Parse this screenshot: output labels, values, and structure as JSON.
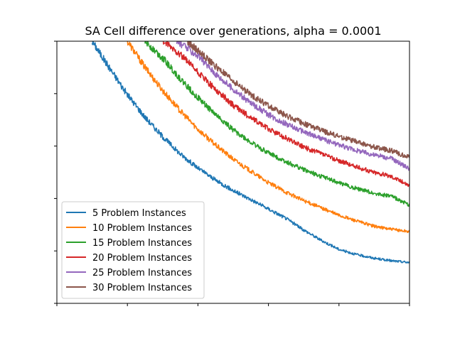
{
  "chart_data": {
    "type": "line",
    "title": "SA Cell difference over generations, alpha = 0.0001",
    "xlabel": "",
    "ylabel": "",
    "xlim": [
      0,
      5
    ],
    "ylim": [
      0,
      5
    ],
    "grid": false,
    "legend_position": "lower-left",
    "x_tick_labels_visible": false,
    "y_tick_labels_visible": false,
    "series": [
      {
        "name": "5 Problem Instances",
        "color": "#1f77b4",
        "points": [
          [
            0.5,
            5.0
          ],
          [
            0.75,
            4.48
          ],
          [
            1.0,
            3.98
          ],
          [
            1.25,
            3.55
          ],
          [
            1.5,
            3.18
          ],
          [
            1.75,
            2.85
          ],
          [
            2.0,
            2.58
          ],
          [
            2.25,
            2.35
          ],
          [
            2.5,
            2.15
          ],
          [
            2.75,
            1.98
          ],
          [
            3.0,
            1.8
          ],
          [
            3.25,
            1.62
          ],
          [
            3.5,
            1.4
          ],
          [
            3.75,
            1.2
          ],
          [
            4.0,
            1.03
          ],
          [
            4.25,
            0.93
          ],
          [
            4.5,
            0.86
          ],
          [
            4.75,
            0.81
          ],
          [
            5.0,
            0.78
          ]
        ]
      },
      {
        "name": "10 Problem Instances",
        "color": "#ff7f0e",
        "points": [
          [
            1.0,
            5.0
          ],
          [
            1.25,
            4.5
          ],
          [
            1.5,
            4.06
          ],
          [
            1.75,
            3.67
          ],
          [
            2.0,
            3.32
          ],
          [
            2.25,
            3.02
          ],
          [
            2.5,
            2.75
          ],
          [
            2.75,
            2.52
          ],
          [
            3.0,
            2.3
          ],
          [
            3.25,
            2.12
          ],
          [
            3.5,
            1.96
          ],
          [
            3.75,
            1.82
          ],
          [
            4.0,
            1.68
          ],
          [
            4.25,
            1.57
          ],
          [
            4.5,
            1.47
          ],
          [
            4.75,
            1.41
          ],
          [
            5.0,
            1.37
          ]
        ]
      },
      {
        "name": "15 Problem Instances",
        "color": "#2ca02c",
        "points": [
          [
            1.25,
            5.0
          ],
          [
            1.5,
            4.68
          ],
          [
            1.75,
            4.28
          ],
          [
            2.0,
            3.92
          ],
          [
            2.25,
            3.6
          ],
          [
            2.5,
            3.31
          ],
          [
            2.75,
            3.07
          ],
          [
            3.0,
            2.87
          ],
          [
            3.25,
            2.7
          ],
          [
            3.5,
            2.55
          ],
          [
            3.75,
            2.42
          ],
          [
            4.0,
            2.3
          ],
          [
            4.25,
            2.19
          ],
          [
            4.5,
            2.1
          ],
          [
            4.75,
            2.04
          ],
          [
            5.0,
            1.87
          ]
        ]
      },
      {
        "name": "20 Problem Instances",
        "color": "#d62728",
        "points": [
          [
            1.5,
            5.0
          ],
          [
            1.75,
            4.75
          ],
          [
            2.0,
            4.4
          ],
          [
            2.25,
            4.08
          ],
          [
            2.5,
            3.78
          ],
          [
            2.75,
            3.54
          ],
          [
            3.0,
            3.33
          ],
          [
            3.25,
            3.15
          ],
          [
            3.5,
            2.98
          ],
          [
            3.75,
            2.85
          ],
          [
            4.0,
            2.72
          ],
          [
            4.25,
            2.6
          ],
          [
            4.5,
            2.5
          ],
          [
            4.75,
            2.42
          ],
          [
            5.0,
            2.25
          ]
        ]
      },
      {
        "name": "25 Problem Instances",
        "color": "#9467bd",
        "points": [
          [
            1.7,
            5.0
          ],
          [
            2.0,
            4.72
          ],
          [
            2.25,
            4.38
          ],
          [
            2.5,
            4.08
          ],
          [
            2.75,
            3.82
          ],
          [
            3.0,
            3.6
          ],
          [
            3.25,
            3.42
          ],
          [
            3.5,
            3.27
          ],
          [
            3.75,
            3.14
          ],
          [
            4.0,
            3.02
          ],
          [
            4.25,
            2.92
          ],
          [
            4.5,
            2.83
          ],
          [
            4.75,
            2.76
          ],
          [
            5.0,
            2.57
          ]
        ]
      },
      {
        "name": "30 Problem Instances",
        "color": "#8c564b",
        "points": [
          [
            1.85,
            5.0
          ],
          [
            2.0,
            4.82
          ],
          [
            2.25,
            4.52
          ],
          [
            2.5,
            4.24
          ],
          [
            2.75,
            3.98
          ],
          [
            3.0,
            3.77
          ],
          [
            3.25,
            3.58
          ],
          [
            3.5,
            3.43
          ],
          [
            3.75,
            3.3
          ],
          [
            4.0,
            3.18
          ],
          [
            4.25,
            3.08
          ],
          [
            4.5,
            2.98
          ],
          [
            4.75,
            2.91
          ],
          [
            5.0,
            2.78
          ]
        ]
      }
    ]
  }
}
